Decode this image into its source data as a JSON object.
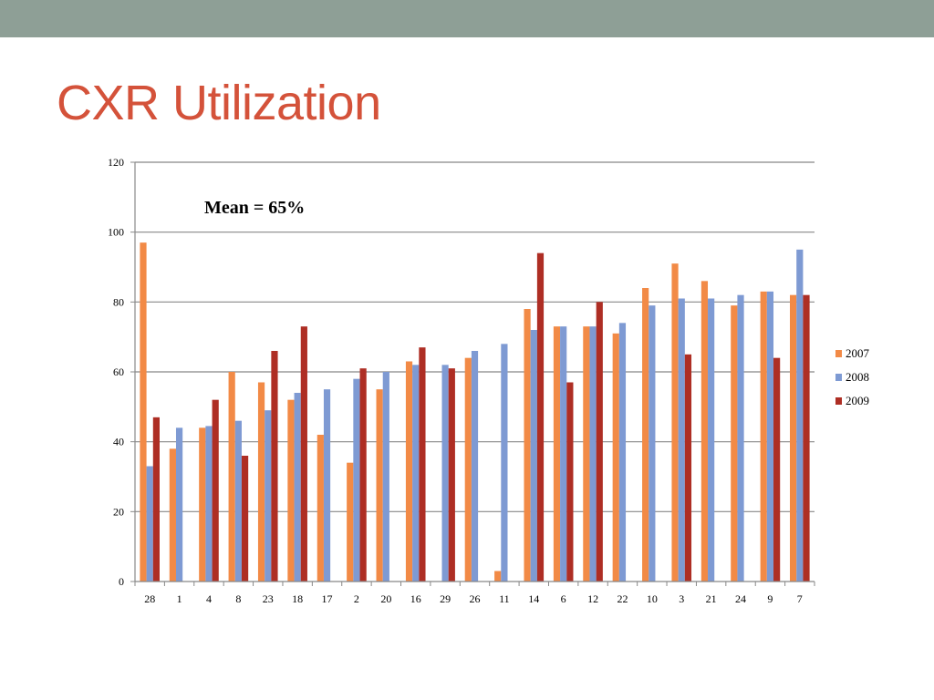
{
  "slide": {
    "title": "CXR Utilization"
  },
  "colors": {
    "band": "#8e9f96",
    "title": "#d4523a",
    "series": [
      "#f28a46",
      "#7e9ad3",
      "#ae2e24"
    ]
  },
  "chart_data": {
    "type": "bar",
    "title": "",
    "xlabel": "",
    "ylabel": "",
    "ylim": [
      0,
      120
    ],
    "yticks": [
      0,
      20,
      40,
      60,
      80,
      100,
      120
    ],
    "grid": true,
    "legend_position": "right",
    "annotation": "Mean = 65%",
    "categories": [
      "28",
      "1",
      "4",
      "8",
      "23",
      "18",
      "17",
      "2",
      "20",
      "16",
      "29",
      "26",
      "11",
      "14",
      "6",
      "12",
      "22",
      "10",
      "3",
      "21",
      "24",
      "9",
      "7"
    ],
    "series": [
      {
        "name": "2007",
        "values": [
          97,
          38,
          44,
          60,
          57,
          52,
          42,
          34,
          55,
          63,
          null,
          64,
          3,
          78,
          73,
          73,
          71,
          84,
          91,
          86,
          79,
          83,
          82
        ]
      },
      {
        "name": "2008",
        "values": [
          33,
          44,
          44.5,
          46,
          49,
          54,
          55,
          58,
          60,
          62,
          62,
          66,
          68,
          72,
          73,
          73,
          74,
          79,
          81,
          81,
          82,
          83,
          95
        ]
      },
      {
        "name": "2009",
        "values": [
          47,
          null,
          52,
          36,
          66,
          73,
          null,
          61,
          null,
          67,
          61,
          null,
          null,
          94,
          57,
          80,
          null,
          null,
          65,
          null,
          null,
          64,
          82
        ]
      }
    ]
  }
}
